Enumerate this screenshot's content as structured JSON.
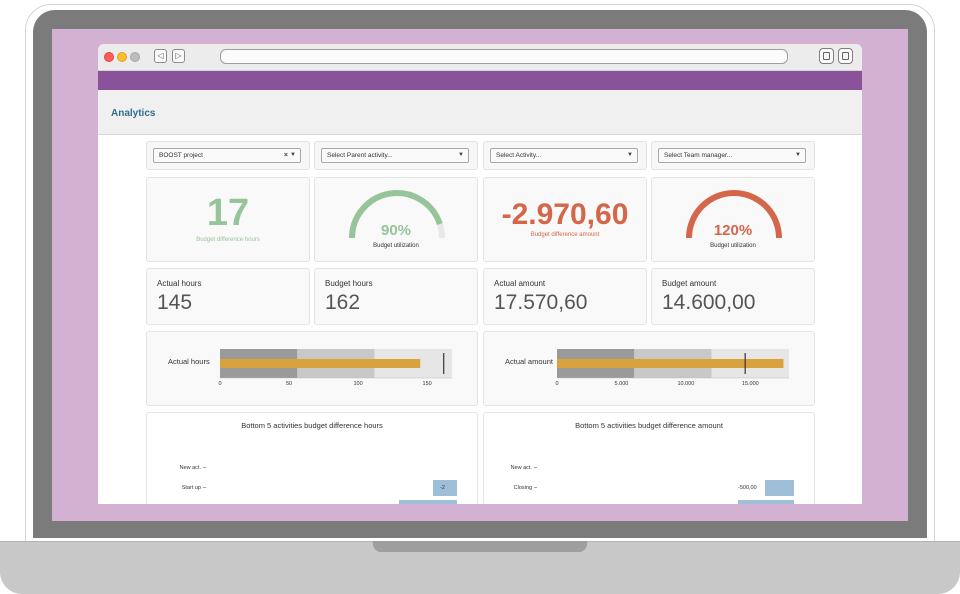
{
  "page": {
    "title": "Analytics"
  },
  "filters": [
    {
      "value": "BOOST project",
      "clearable": true
    },
    {
      "value": "Select Parent activity..."
    },
    {
      "value": "Select Activity..."
    },
    {
      "value": "Select Team manager..."
    }
  ],
  "kpis": {
    "hours_diff": {
      "value": "17",
      "label": "Budget difference hours",
      "color": "#97c49a"
    },
    "hours_util": {
      "value": "90%",
      "label": "Budget utilization",
      "fraction": 0.9,
      "color": "#97c49a"
    },
    "amount_diff": {
      "value": "-2.970,60",
      "label": "Budget difference amount",
      "color": "#d4664a"
    },
    "amount_util": {
      "value": "120%",
      "label": "Budget utilization",
      "fraction": 1.2,
      "color": "#d4664a"
    }
  },
  "stats": [
    {
      "label": "Actual hours",
      "value": "145"
    },
    {
      "label": "Budget hours",
      "value": "162"
    },
    {
      "label": "Actual amount",
      "value": "17.570,60"
    },
    {
      "label": "Budget amount",
      "value": "14.600,00"
    }
  ],
  "bullets": {
    "hours": {
      "title": "Actual hours",
      "max": 168,
      "ranges": [
        56,
        112,
        168
      ],
      "actual": 145,
      "target": 162,
      "ticks": [
        "0",
        "50",
        "100",
        "150"
      ],
      "tick_values": [
        0,
        50,
        100,
        150
      ]
    },
    "amount": {
      "title": "Actual amount",
      "max": 18000,
      "ranges": [
        6000,
        12000,
        18000
      ],
      "actual": 17570.6,
      "target": 14600,
      "ticks": [
        "0",
        "5.000",
        "10.000",
        "15.000"
      ],
      "tick_values": [
        0,
        5000,
        10000,
        15000
      ]
    }
  },
  "bottom_hours": {
    "title": "Bottom 5 activities budget difference hours",
    "rows": [
      {
        "label": "New act.",
        "value_label": ""
      },
      {
        "label": "Start up",
        "value_label": "-2"
      }
    ]
  },
  "bottom_amount": {
    "title": "Bottom 5 activities budget difference amount",
    "rows": [
      {
        "label": "New act.",
        "value_label": ""
      },
      {
        "label": "Closing",
        "value_label": "-500,00"
      }
    ]
  },
  "colors": {
    "app_bar": "#8a5299",
    "title": "#2f6e8f",
    "bullet_actual": "#d9a23c",
    "range_dark": "#9a9a9a",
    "range_mid": "#c8c8c8",
    "range_light": "#e6e6e6",
    "hbar": "#9fbfd8"
  }
}
